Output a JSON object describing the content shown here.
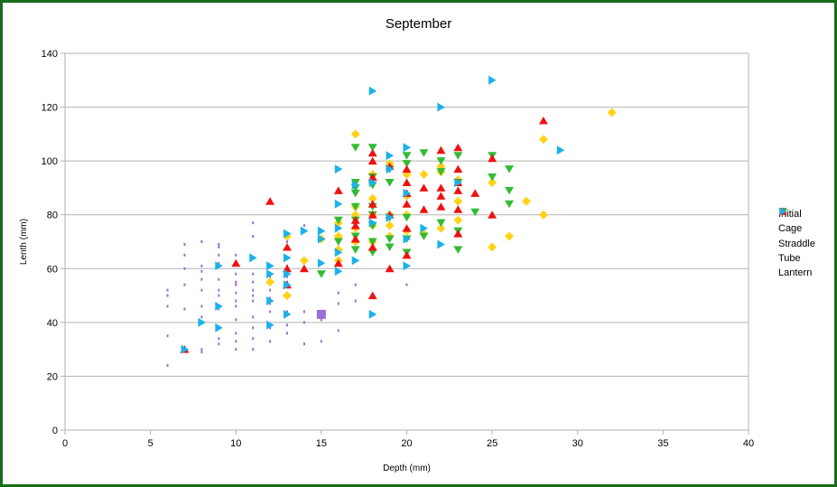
{
  "chart_data": {
    "type": "scatter",
    "title": "September",
    "xlabel": "Depth (mm)",
    "ylabel": "Lenth (mm)",
    "xlim": [
      0,
      40
    ],
    "ylim": [
      0,
      140
    ],
    "xticks": [
      "0",
      "5",
      "10",
      "15",
      "20",
      "25",
      "30",
      "35",
      "40"
    ],
    "yticks": [
      "0",
      "20",
      "40",
      "60",
      "80",
      "100",
      "120",
      "140"
    ],
    "grid": "horizontal",
    "legend_position": "right",
    "series": [
      {
        "name": "Initial",
        "color": "#9a6fd6",
        "marker": "square",
        "points": [
          [
            6,
            24
          ],
          [
            6,
            35
          ],
          [
            6,
            46
          ],
          [
            6,
            50
          ],
          [
            6,
            52
          ],
          [
            7,
            30
          ],
          [
            7,
            45
          ],
          [
            7,
            54
          ],
          [
            7,
            60
          ],
          [
            7,
            65
          ],
          [
            7,
            69
          ],
          [
            8,
            29
          ],
          [
            8,
            30
          ],
          [
            8,
            42
          ],
          [
            8,
            46
          ],
          [
            8,
            52
          ],
          [
            8,
            56
          ],
          [
            8,
            59
          ],
          [
            8,
            61
          ],
          [
            8,
            70
          ],
          [
            9,
            32
          ],
          [
            9,
            34
          ],
          [
            9,
            38
          ],
          [
            9,
            45
          ],
          [
            9,
            50
          ],
          [
            9,
            52
          ],
          [
            9,
            56
          ],
          [
            9,
            62
          ],
          [
            9,
            65
          ],
          [
            9,
            68
          ],
          [
            9,
            69
          ],
          [
            10,
            30
          ],
          [
            10,
            33
          ],
          [
            10,
            36
          ],
          [
            10,
            41
          ],
          [
            10,
            46
          ],
          [
            10,
            48
          ],
          [
            10,
            51
          ],
          [
            10,
            54
          ],
          [
            10,
            55
          ],
          [
            10,
            58
          ],
          [
            10,
            62
          ],
          [
            10,
            65
          ],
          [
            11,
            30
          ],
          [
            11,
            34
          ],
          [
            11,
            38
          ],
          [
            11,
            42
          ],
          [
            11,
            48
          ],
          [
            11,
            50
          ],
          [
            11,
            52
          ],
          [
            11,
            55
          ],
          [
            11,
            58
          ],
          [
            11,
            72
          ],
          [
            11,
            77
          ],
          [
            12,
            33
          ],
          [
            12,
            38
          ],
          [
            12,
            44
          ],
          [
            12,
            47
          ],
          [
            12,
            49
          ],
          [
            12,
            52
          ],
          [
            12,
            57
          ],
          [
            12,
            61
          ],
          [
            13,
            36
          ],
          [
            13,
            39
          ],
          [
            13,
            44
          ],
          [
            13,
            50
          ],
          [
            13,
            55
          ],
          [
            13,
            57
          ],
          [
            13,
            61
          ],
          [
            13,
            70
          ],
          [
            14,
            32
          ],
          [
            14,
            40
          ],
          [
            14,
            44
          ],
          [
            14,
            76
          ],
          [
            15,
            33
          ],
          [
            15,
            41
          ],
          [
            15,
            43
          ],
          [
            16,
            37
          ],
          [
            16,
            47
          ],
          [
            16,
            51
          ],
          [
            17,
            48
          ],
          [
            17,
            54
          ],
          [
            20,
            54
          ]
        ]
      },
      {
        "name": "Cage",
        "color": "#ffd21a",
        "marker": "diamond",
        "points": [
          [
            12,
            55
          ],
          [
            13,
            50
          ],
          [
            13,
            72
          ],
          [
            14,
            63
          ],
          [
            15,
            71
          ],
          [
            16,
            63
          ],
          [
            16,
            67
          ],
          [
            16,
            72
          ],
          [
            16,
            77
          ],
          [
            17,
            70
          ],
          [
            17,
            75
          ],
          [
            17,
            80
          ],
          [
            17,
            83
          ],
          [
            17,
            110
          ],
          [
            18,
            70
          ],
          [
            18,
            76
          ],
          [
            18,
            80
          ],
          [
            18,
            86
          ],
          [
            18,
            95
          ],
          [
            19,
            72
          ],
          [
            19,
            76
          ],
          [
            19,
            80
          ],
          [
            19,
            99
          ],
          [
            20,
            74
          ],
          [
            20,
            80
          ],
          [
            20,
            87
          ],
          [
            20,
            95
          ],
          [
            21,
            73
          ],
          [
            21,
            95
          ],
          [
            22,
            75
          ],
          [
            22,
            96
          ],
          [
            22,
            98
          ],
          [
            23,
            78
          ],
          [
            23,
            85
          ],
          [
            23,
            93
          ],
          [
            25,
            68
          ],
          [
            25,
            92
          ],
          [
            26,
            72
          ],
          [
            27,
            85
          ],
          [
            28,
            80
          ],
          [
            28,
            108
          ],
          [
            32,
            118
          ]
        ]
      },
      {
        "name": "Straddle",
        "color": "#33bb33",
        "marker": "triangle-down",
        "points": [
          [
            15,
            58
          ],
          [
            16,
            70
          ],
          [
            16,
            78
          ],
          [
            17,
            67
          ],
          [
            17,
            72
          ],
          [
            17,
            78
          ],
          [
            17,
            83
          ],
          [
            17,
            88
          ],
          [
            17,
            90
          ],
          [
            17,
            92
          ],
          [
            17,
            105
          ],
          [
            18,
            66
          ],
          [
            18,
            70
          ],
          [
            18,
            76
          ],
          [
            18,
            80
          ],
          [
            18,
            83
          ],
          [
            18,
            91
          ],
          [
            18,
            94
          ],
          [
            18,
            105
          ],
          [
            19,
            68
          ],
          [
            19,
            71
          ],
          [
            19,
            79
          ],
          [
            19,
            92
          ],
          [
            19,
            97
          ],
          [
            20,
            66
          ],
          [
            20,
            71
          ],
          [
            20,
            79
          ],
          [
            20,
            99
          ],
          [
            20,
            102
          ],
          [
            21,
            72
          ],
          [
            21,
            103
          ],
          [
            22,
            77
          ],
          [
            22,
            96
          ],
          [
            22,
            100
          ],
          [
            23,
            67
          ],
          [
            23,
            74
          ],
          [
            23,
            92
          ],
          [
            23,
            102
          ],
          [
            24,
            81
          ],
          [
            25,
            94
          ],
          [
            25,
            102
          ],
          [
            26,
            84
          ],
          [
            26,
            89
          ],
          [
            26,
            97
          ]
        ]
      },
      {
        "name": "Tube",
        "color": "#ee1111",
        "marker": "triangle-up",
        "points": [
          [
            7,
            30
          ],
          [
            10,
            62
          ],
          [
            12,
            85
          ],
          [
            13,
            54
          ],
          [
            13,
            60
          ],
          [
            13,
            68
          ],
          [
            14,
            60
          ],
          [
            16,
            62
          ],
          [
            16,
            89
          ],
          [
            17,
            71
          ],
          [
            17,
            76
          ],
          [
            17,
            78
          ],
          [
            18,
            50
          ],
          [
            18,
            68
          ],
          [
            18,
            80
          ],
          [
            18,
            84
          ],
          [
            18,
            94
          ],
          [
            18,
            100
          ],
          [
            18,
            103
          ],
          [
            19,
            60
          ],
          [
            19,
            80
          ],
          [
            19,
            98
          ],
          [
            20,
            65
          ],
          [
            20,
            75
          ],
          [
            20,
            84
          ],
          [
            20,
            88
          ],
          [
            20,
            92
          ],
          [
            20,
            97
          ],
          [
            21,
            82
          ],
          [
            21,
            90
          ],
          [
            22,
            83
          ],
          [
            22,
            87
          ],
          [
            22,
            90
          ],
          [
            22,
            104
          ],
          [
            23,
            73
          ],
          [
            23,
            82
          ],
          [
            23,
            89
          ],
          [
            23,
            92
          ],
          [
            23,
            97
          ],
          [
            23,
            105
          ],
          [
            24,
            88
          ],
          [
            25,
            80
          ],
          [
            25,
            101
          ],
          [
            28,
            115
          ]
        ]
      },
      {
        "name": "Lantern",
        "color": "#1ab2e8",
        "marker": "triangle-right",
        "points": [
          [
            7,
            30
          ],
          [
            8,
            40
          ],
          [
            9,
            38
          ],
          [
            9,
            46
          ],
          [
            9,
            61
          ],
          [
            11,
            64
          ],
          [
            12,
            39
          ],
          [
            12,
            48
          ],
          [
            12,
            58
          ],
          [
            12,
            61
          ],
          [
            13,
            43
          ],
          [
            13,
            54
          ],
          [
            13,
            58
          ],
          [
            13,
            64
          ],
          [
            13,
            73
          ],
          [
            14,
            74
          ],
          [
            15,
            62
          ],
          [
            15,
            71
          ],
          [
            15,
            74
          ],
          [
            16,
            59
          ],
          [
            16,
            66
          ],
          [
            16,
            75
          ],
          [
            16,
            84
          ],
          [
            16,
            97
          ],
          [
            17,
            63
          ],
          [
            17,
            91
          ],
          [
            18,
            43
          ],
          [
            18,
            77
          ],
          [
            18,
            92
          ],
          [
            18,
            126
          ],
          [
            19,
            79
          ],
          [
            19,
            97
          ],
          [
            19,
            102
          ],
          [
            20,
            61
          ],
          [
            20,
            71
          ],
          [
            20,
            88
          ],
          [
            20,
            105
          ],
          [
            21,
            75
          ],
          [
            22,
            69
          ],
          [
            22,
            120
          ],
          [
            23,
            92
          ],
          [
            25,
            130
          ],
          [
            29,
            104
          ]
        ]
      }
    ]
  }
}
